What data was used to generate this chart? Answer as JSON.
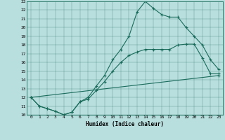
{
  "title": "",
  "xlabel": "Humidex (Indice chaleur)",
  "bg_color": "#b8dede",
  "line_color": "#1a6b5a",
  "xlim": [
    -0.5,
    23.5
  ],
  "ylim": [
    10,
    23
  ],
  "xticks": [
    0,
    1,
    2,
    3,
    4,
    5,
    6,
    7,
    8,
    9,
    10,
    11,
    12,
    13,
    14,
    15,
    16,
    17,
    18,
    19,
    20,
    21,
    22,
    23
  ],
  "yticks": [
    10,
    11,
    12,
    13,
    14,
    15,
    16,
    17,
    18,
    19,
    20,
    21,
    22,
    23
  ],
  "line1_x": [
    0,
    1,
    2,
    3,
    4,
    5,
    6,
    7,
    8,
    9,
    10,
    11,
    12,
    13,
    14,
    15,
    16,
    17,
    18,
    19,
    20,
    21,
    22,
    23
  ],
  "line1_y": [
    12,
    11,
    10.7,
    10.4,
    10,
    10.3,
    11.5,
    12.0,
    13.3,
    14.5,
    16.3,
    17.5,
    19.0,
    21.8,
    23.0,
    22.2,
    21.5,
    21.2,
    21.2,
    20.0,
    19.0,
    18.0,
    16.3,
    15.2
  ],
  "line2_x": [
    0,
    1,
    2,
    3,
    4,
    5,
    6,
    7,
    8,
    9,
    10,
    11,
    12,
    13,
    14,
    15,
    16,
    17,
    18,
    19,
    20,
    21,
    22,
    23
  ],
  "line2_y": [
    12,
    11,
    10.7,
    10.4,
    10,
    10.3,
    11.5,
    11.8,
    12.8,
    13.8,
    15.0,
    16.0,
    16.8,
    17.2,
    17.5,
    17.5,
    17.5,
    17.5,
    18.0,
    18.1,
    18.1,
    16.5,
    14.7,
    14.7
  ],
  "line3_x": [
    0,
    23
  ],
  "line3_y": [
    12,
    14.5
  ]
}
